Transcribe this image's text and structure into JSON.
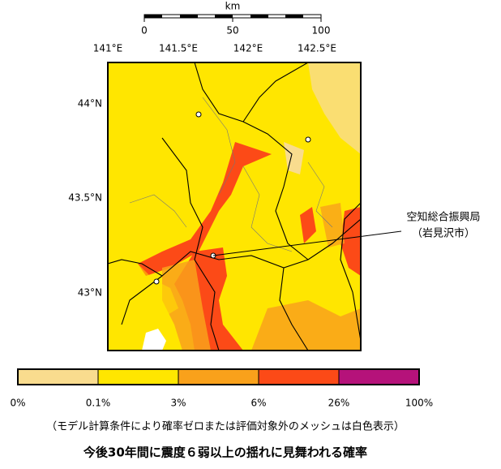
{
  "scale_bar": {
    "unit": "km",
    "ticks": [
      "0",
      "50",
      "100"
    ]
  },
  "map": {
    "longitude_labels": [
      "141°E",
      "141.5°E",
      "142°E",
      "142.5°E"
    ],
    "latitude_labels": [
      "44°N",
      "43.5°N",
      "43°N"
    ],
    "annotation": [
      "空知総合振興局",
      "（岩見沢市）"
    ]
  },
  "legend": {
    "labels": [
      "0%",
      "0.1%",
      "3%",
      "6%",
      "26%",
      "100%"
    ],
    "colors": [
      "#f9dc8e",
      "#ffe600",
      "#f9a11b",
      "#fc4a17",
      "#b5127a"
    ]
  },
  "note": "（モデル計算条件により確率ゼロまたは評価対象外のメッシュは白色表示）",
  "title": "今後30年間に震度６弱以上の揺れに見舞われる確率"
}
